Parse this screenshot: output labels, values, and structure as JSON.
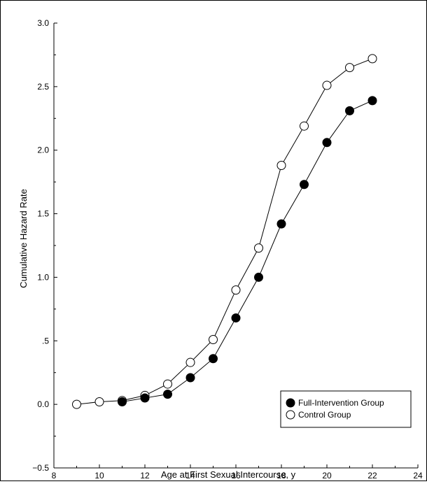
{
  "chart_data": {
    "type": "line",
    "xlabel": "Age at First Sexual Intercourse, y",
    "ylabel": "Cumulative Hazard Rate",
    "xlim": [
      8,
      24
    ],
    "ylim": [
      -0.5,
      3.0
    ],
    "x_ticks": [
      "8",
      "10",
      "12",
      "14",
      "16",
      "18",
      "20",
      "22",
      "24"
    ],
    "y_ticks": [
      "−0.5",
      "0.0",
      ".5",
      "1.0",
      "1.5",
      "2.0",
      "2.5",
      "3.0"
    ],
    "grid": false,
    "legend_position": "bottom-right",
    "series": [
      {
        "name": "Full-Intervention Group",
        "marker": "filled-circle",
        "color": "#000000",
        "x": [
          11,
          12,
          13,
          14,
          15,
          16,
          17,
          18,
          19,
          20,
          21,
          22
        ],
        "y": [
          0.02,
          0.05,
          0.08,
          0.21,
          0.36,
          0.68,
          1.0,
          1.42,
          1.73,
          2.06,
          2.31,
          2.39
        ]
      },
      {
        "name": "Control Group",
        "marker": "open-circle",
        "color": "#000000",
        "x": [
          9,
          10,
          11,
          12,
          13,
          14,
          15,
          16,
          17,
          18,
          19,
          20,
          21,
          22
        ],
        "y": [
          0.0,
          0.02,
          0.03,
          0.07,
          0.16,
          0.33,
          0.51,
          0.9,
          1.23,
          1.88,
          2.19,
          2.51,
          2.65,
          2.72
        ]
      }
    ]
  }
}
